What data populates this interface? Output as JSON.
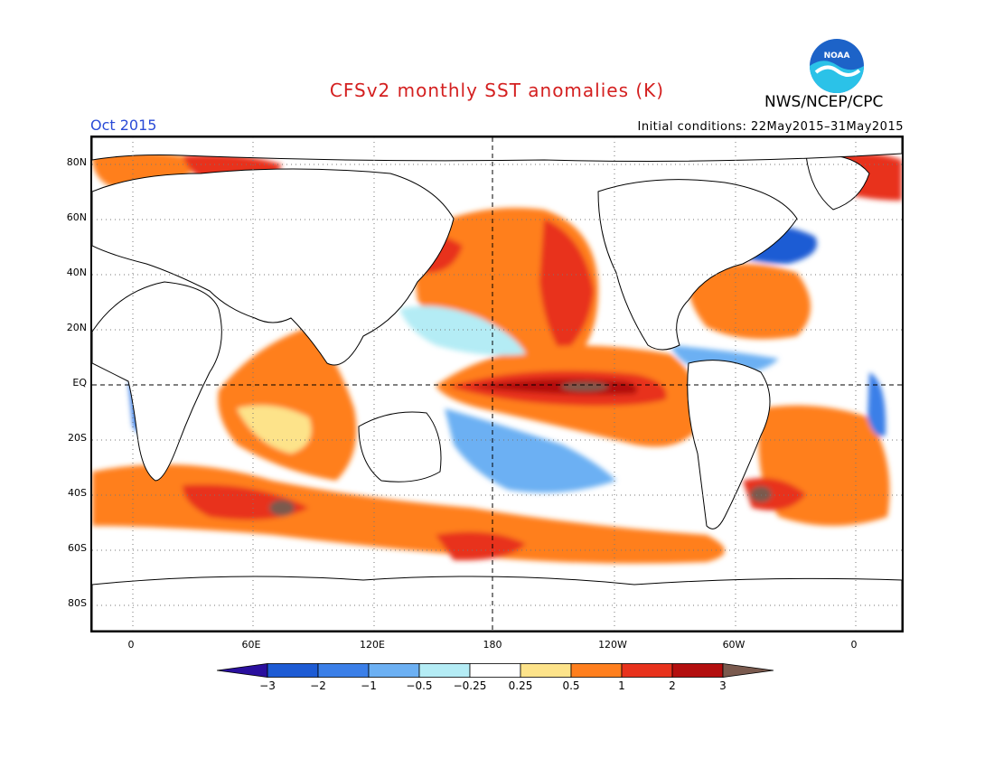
{
  "header": {
    "title": "CFSv2 monthly SST anomalies (K)",
    "agency": "NWS/NCEP/CPC",
    "logo_text": "NOAA",
    "month": "Oct 2015",
    "initial_conditions": "Initial conditions: 22May2015–31May2015"
  },
  "axes": {
    "lat_labels": [
      "80N",
      "60N",
      "40N",
      "20N",
      "EQ",
      "20S",
      "40S",
      "60S",
      "80S"
    ],
    "lon_labels": [
      "0",
      "60E",
      "120E",
      "180",
      "120W",
      "60W",
      "0"
    ]
  },
  "colorbar": {
    "labels": [
      "−3",
      "−2",
      "−1",
      "−0.5",
      "−0.25",
      "0.25",
      "0.5",
      "1",
      "2",
      "3"
    ],
    "colors": [
      "#2a0f9e",
      "#1d5bd4",
      "#3b7fe8",
      "#6cb0f3",
      "#b4ecf5",
      "#ffffff",
      "#fde38a",
      "#ff7f1e",
      "#e8321c",
      "#b30f0f",
      "#7a5a4e"
    ]
  }
}
